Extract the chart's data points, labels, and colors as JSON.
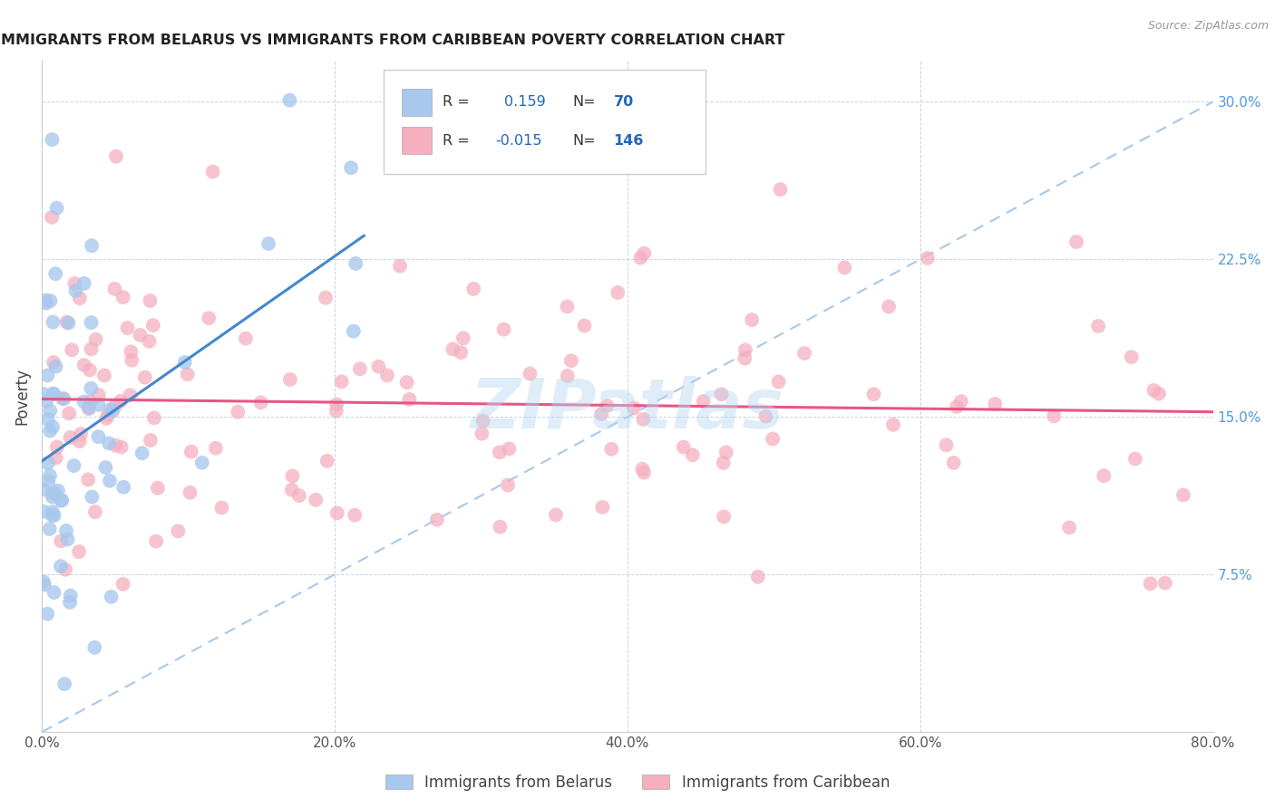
{
  "title": "IMMIGRANTS FROM BELARUS VS IMMIGRANTS FROM CARIBBEAN POVERTY CORRELATION CHART",
  "source": "Source: ZipAtlas.com",
  "ylabel": "Poverty",
  "xlim": [
    0.0,
    0.8
  ],
  "ylim": [
    0.0,
    0.32
  ],
  "r_belarus": 0.159,
  "n_belarus": 70,
  "r_caribbean": -0.015,
  "n_caribbean": 146,
  "color_belarus": "#a8c8ee",
  "color_caribbean": "#f5afc0",
  "trendline_belarus_color": "#4488cc",
  "trendline_caribbean_color": "#e85585",
  "trendline_dashed_color": "#a8c8e8",
  "watermark": "ZIPatlas",
  "legend_label_belarus": "Immigrants from Belarus",
  "legend_label_caribbean": "Immigrants from Caribbean",
  "x_ticks": [
    0.0,
    0.2,
    0.4,
    0.6,
    0.8
  ],
  "y_ticks": [
    0.075,
    0.15,
    0.225,
    0.3
  ],
  "y_tick_labels": [
    "7.5%",
    "15.0%",
    "22.5%",
    "30.0%"
  ]
}
